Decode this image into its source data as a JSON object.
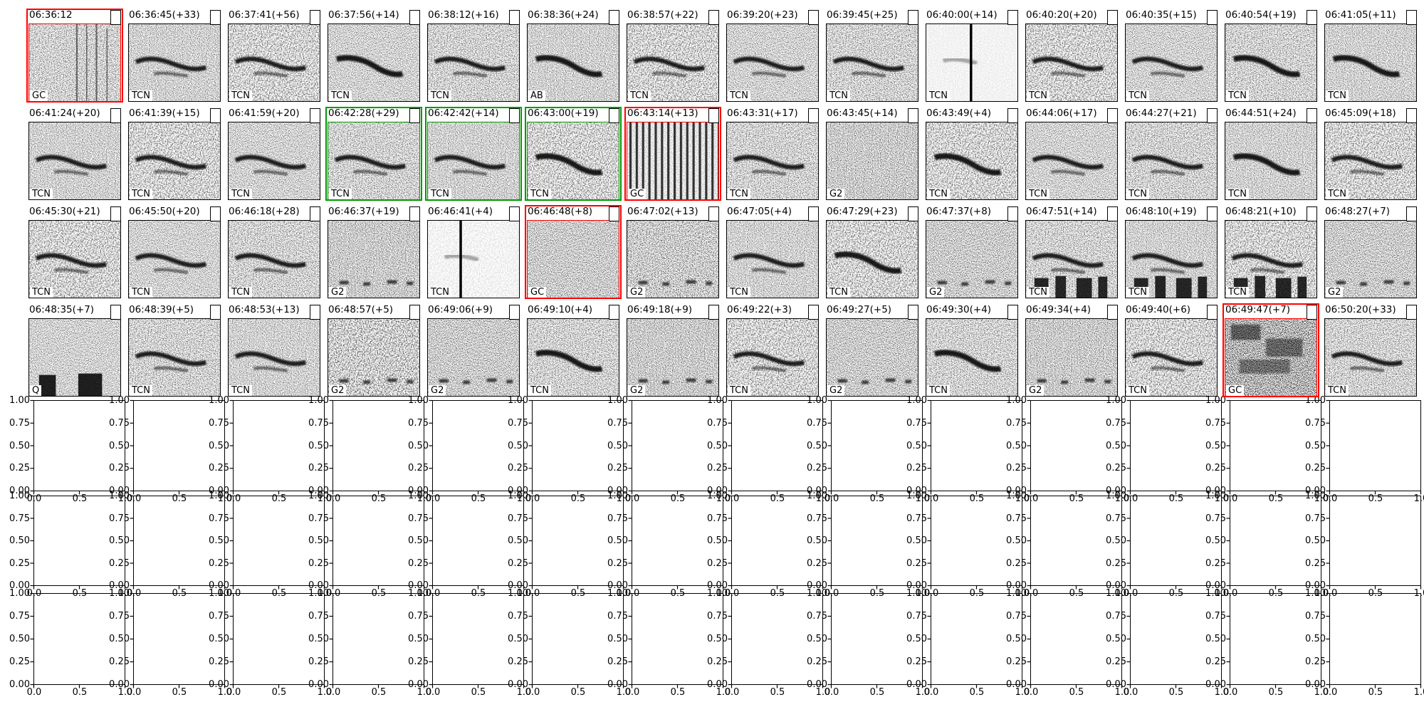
{
  "colors": {
    "background": "#ffffff",
    "frame": "#000000",
    "text": "#000000",
    "flag_red": "#ff0000",
    "flag_green": "#009900"
  },
  "empty_axes": {
    "n_rows": 3,
    "n_cols": 14,
    "yticks": [
      "1.00",
      "0.75",
      "0.50",
      "0.25",
      "0.00"
    ],
    "xticks": [
      "0.0",
      "0.5",
      "1.0"
    ]
  },
  "chart_data": [
    {
      "type": "heatmap",
      "subtype": "spectrogram-thumbnail-grid",
      "n_rows": 4,
      "n_cols": 14,
      "note": "grayscale spectrogram thumbnails; title = timestamp(+offset s); corner label = class; border color flags selection",
      "rows": [
        {
          "panels": [
            {
              "title": "06:36:12",
              "label": "GC",
              "border": "red",
              "variant": "vstreaks"
            },
            {
              "title": "06:36:45(+33)",
              "label": "TCN",
              "border": "black",
              "variant": "whistle"
            },
            {
              "title": "06:37:41(+56)",
              "label": "TCN",
              "border": "black",
              "variant": "whistle"
            },
            {
              "title": "06:37:56(+14)",
              "label": "TCN",
              "border": "black",
              "variant": "whistle2"
            },
            {
              "title": "06:38:12(+16)",
              "label": "TCN",
              "border": "black",
              "variant": "whistle"
            },
            {
              "title": "06:38:36(+24)",
              "label": "AB",
              "border": "black",
              "variant": "whistle2"
            },
            {
              "title": "06:38:57(+22)",
              "label": "TCN",
              "border": "black",
              "variant": "whistle"
            },
            {
              "title": "06:39:20(+23)",
              "label": "TCN",
              "border": "black",
              "variant": "whistle"
            },
            {
              "title": "06:39:45(+25)",
              "label": "TCN",
              "border": "black",
              "variant": "whistle"
            },
            {
              "title": "06:40:00(+14)",
              "label": "TCN",
              "border": "black",
              "variant": "light-vline",
              "vx": 62
            },
            {
              "title": "06:40:20(+20)",
              "label": "TCN",
              "border": "black",
              "variant": "whistle"
            },
            {
              "title": "06:40:35(+15)",
              "label": "TCN",
              "border": "black",
              "variant": "whistle"
            },
            {
              "title": "06:40:54(+19)",
              "label": "TCN",
              "border": "black",
              "variant": "whistle2"
            },
            {
              "title": "06:41:05(+11)",
              "label": "TCN",
              "border": "black",
              "variant": "whistle2"
            }
          ]
        },
        {
          "panels": [
            {
              "title": "06:41:24(+20)",
              "label": "TCN",
              "border": "black",
              "variant": "whistle"
            },
            {
              "title": "06:41:39(+15)",
              "label": "TCN",
              "border": "black",
              "variant": "whistle"
            },
            {
              "title": "06:41:59(+20)",
              "label": "TCN",
              "border": "black",
              "variant": "whistle"
            },
            {
              "title": "06:42:28(+29)",
              "label": "TCN",
              "border": "green",
              "variant": "whistle"
            },
            {
              "title": "06:42:42(+14)",
              "label": "TCN",
              "border": "green",
              "variant": "whistle"
            },
            {
              "title": "06:43:00(+19)",
              "label": "TCN",
              "border": "green",
              "variant": "whistle2"
            },
            {
              "title": "06:43:14(+13)",
              "label": "GC",
              "border": "red",
              "variant": "barcode"
            },
            {
              "title": "06:43:31(+17)",
              "label": "TCN",
              "border": "black",
              "variant": "whistle"
            },
            {
              "title": "06:43:45(+14)",
              "label": "G2",
              "border": "black",
              "variant": "noise"
            },
            {
              "title": "06:43:49(+4)",
              "label": "TCN",
              "border": "black",
              "variant": "whistle2"
            },
            {
              "title": "06:44:06(+17)",
              "label": "TCN",
              "border": "black",
              "variant": "whistle"
            },
            {
              "title": "06:44:27(+21)",
              "label": "TCN",
              "border": "black",
              "variant": "whistle"
            },
            {
              "title": "06:44:51(+24)",
              "label": "TCN",
              "border": "black",
              "variant": "whistle2"
            },
            {
              "title": "06:45:09(+18)",
              "label": "TCN",
              "border": "black",
              "variant": "whistle"
            }
          ]
        },
        {
          "panels": [
            {
              "title": "06:45:30(+21)",
              "label": "TCN",
              "border": "black",
              "variant": "whistle"
            },
            {
              "title": "06:45:50(+20)",
              "label": "TCN",
              "border": "black",
              "variant": "whistle"
            },
            {
              "title": "06:46:18(+28)",
              "label": "TCN",
              "border": "black",
              "variant": "whistle"
            },
            {
              "title": "06:46:37(+19)",
              "label": "G2",
              "border": "black",
              "variant": "noise-dashes"
            },
            {
              "title": "06:46:41(+4)",
              "label": "TCN",
              "border": "black",
              "variant": "light-vline",
              "vx": 45
            },
            {
              "title": "06:46:48(+8)",
              "label": "GC",
              "border": "red",
              "variant": "noise"
            },
            {
              "title": "06:47:02(+13)",
              "label": "G2",
              "border": "black",
              "variant": "noise-dashes"
            },
            {
              "title": "06:47:05(+4)",
              "label": "TCN",
              "border": "black",
              "variant": "whistle"
            },
            {
              "title": "06:47:29(+23)",
              "label": "TCN",
              "border": "black",
              "variant": "whistle2"
            },
            {
              "title": "06:47:37(+8)",
              "label": "G2",
              "border": "black",
              "variant": "noise-dashes"
            },
            {
              "title": "06:47:51(+14)",
              "label": "TCN",
              "border": "black",
              "variant": "whistle-blocks"
            },
            {
              "title": "06:48:10(+19)",
              "label": "TCN",
              "border": "black",
              "variant": "whistle-blocks"
            },
            {
              "title": "06:48:21(+10)",
              "label": "TCN",
              "border": "black",
              "variant": "whistle-blocks"
            },
            {
              "title": "06:48:27(+7)",
              "label": "G2",
              "border": "black",
              "variant": "noise-dashes"
            }
          ]
        },
        {
          "panels": [
            {
              "title": "06:48:35(+7)",
              "label": "Q",
              "border": "black",
              "variant": "noise-blocks"
            },
            {
              "title": "06:48:39(+5)",
              "label": "TCN",
              "border": "black",
              "variant": "whistle"
            },
            {
              "title": "06:48:53(+13)",
              "label": "TCN",
              "border": "black",
              "variant": "whistle"
            },
            {
              "title": "06:48:57(+5)",
              "label": "G2",
              "border": "black",
              "variant": "noise-dashes"
            },
            {
              "title": "06:49:06(+9)",
              "label": "G2",
              "border": "black",
              "variant": "noise-dashes"
            },
            {
              "title": "06:49:10(+4)",
              "label": "TCN",
              "border": "black",
              "variant": "whistle2"
            },
            {
              "title": "06:49:18(+9)",
              "label": "G2",
              "border": "black",
              "variant": "noise-dashes"
            },
            {
              "title": "06:49:22(+3)",
              "label": "TCN",
              "border": "black",
              "variant": "whistle"
            },
            {
              "title": "06:49:27(+5)",
              "label": "G2",
              "border": "black",
              "variant": "noise-dashes"
            },
            {
              "title": "06:49:30(+4)",
              "label": "TCN",
              "border": "black",
              "variant": "whistle2"
            },
            {
              "title": "06:49:34(+4)",
              "label": "G2",
              "border": "black",
              "variant": "noise-dashes"
            },
            {
              "title": "06:49:40(+6)",
              "label": "TCN",
              "border": "black",
              "variant": "whistle"
            },
            {
              "title": "06:49:47(+7)",
              "label": "GC",
              "border": "red",
              "variant": "dark"
            },
            {
              "title": "06:50:20(+33)",
              "label": "TCN",
              "border": "black",
              "variant": "whistle"
            }
          ]
        }
      ]
    },
    {
      "type": "line",
      "subtype": "empty-axes-grid",
      "n_rows": 3,
      "n_cols": 14,
      "series": [],
      "xlim": [
        0,
        1
      ],
      "ylim": [
        0,
        1
      ],
      "xticks": [
        0,
        0.5,
        1
      ],
      "yticks": [
        0,
        0.25,
        0.5,
        0.75,
        1
      ],
      "grid": false,
      "legend": false
    }
  ]
}
